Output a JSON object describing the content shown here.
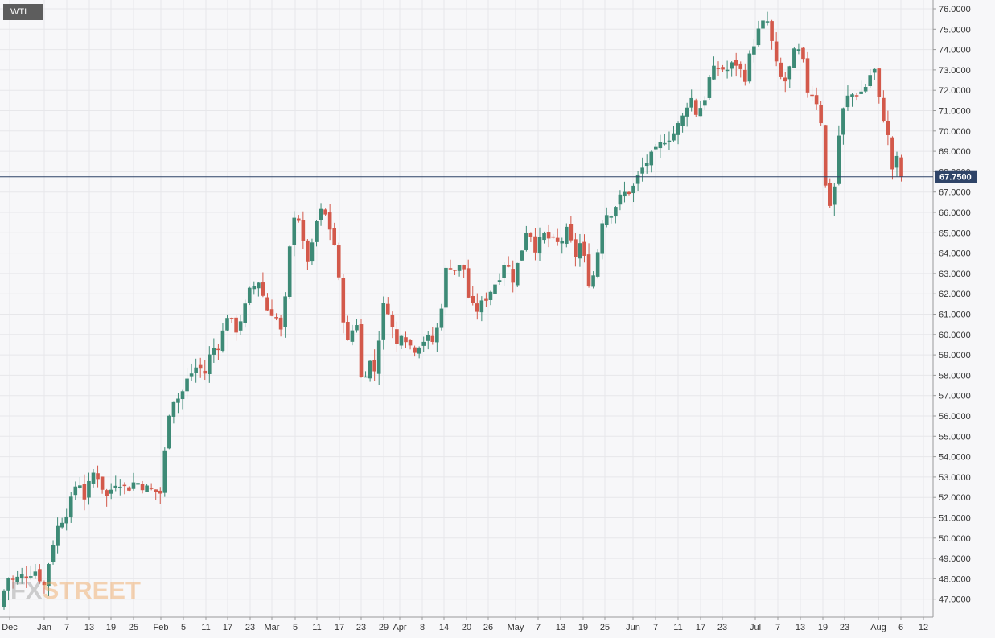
{
  "symbol": "WTI",
  "watermark": {
    "prefix": "FX",
    "suffix": "STREET"
  },
  "colors": {
    "up": "#3d8a76",
    "down": "#d3594b",
    "price_line": "#2f4468",
    "grid": "#e7e7ea",
    "axis_text": "#333333"
  },
  "chart_data": {
    "type": "candlestick",
    "ylim": [
      46.0,
      76.4
    ],
    "y_ticks": [
      "47.0000",
      "48.0000",
      "49.0000",
      "50.0000",
      "51.0000",
      "52.0000",
      "53.0000",
      "54.0000",
      "55.0000",
      "56.0000",
      "57.0000",
      "58.0000",
      "59.0000",
      "60.0000",
      "61.0000",
      "62.0000",
      "63.0000",
      "64.0000",
      "65.0000",
      "66.0000",
      "67.0000",
      "68.0000",
      "69.0000",
      "70.0000",
      "71.0000",
      "72.0000",
      "73.0000",
      "74.0000",
      "75.0000",
      "76.0000"
    ],
    "x_ticks": [
      "Dec",
      "Jan",
      "7",
      "13",
      "19",
      "25",
      "Feb",
      "5",
      "11",
      "17",
      "23",
      "Mar",
      "5",
      "11",
      "17",
      "23",
      "29",
      "Apr",
      "8",
      "14",
      "20",
      "26",
      "May",
      "7",
      "13",
      "19",
      "25",
      "Jun",
      "7",
      "11",
      "17",
      "23",
      "Jul",
      "7",
      "13",
      "19",
      "23",
      "Aug",
      "6",
      "12"
    ],
    "last_price": 67.75,
    "last_price_label": "67.7500",
    "anchors": [
      [
        0,
        46.6
      ],
      [
        9,
        48.1
      ],
      [
        16,
        47.9
      ],
      [
        30,
        48.2
      ],
      [
        44,
        48.4
      ],
      [
        56,
        47.6
      ],
      [
        62,
        49.2
      ],
      [
        72,
        50.6
      ],
      [
        86,
        51.5
      ],
      [
        97,
        53.0
      ],
      [
        105,
        52.0
      ],
      [
        118,
        53.4
      ],
      [
        132,
        52.0
      ],
      [
        146,
        52.9
      ],
      [
        158,
        52.4
      ],
      [
        168,
        52.8
      ],
      [
        184,
        52.4
      ],
      [
        200,
        52.2
      ],
      [
        206,
        54.7
      ],
      [
        212,
        56.8
      ],
      [
        224,
        56.9
      ],
      [
        234,
        57.9
      ],
      [
        246,
        58.5
      ],
      [
        254,
        58.0
      ],
      [
        262,
        59.2
      ],
      [
        274,
        59.6
      ],
      [
        282,
        61.0
      ],
      [
        293,
        60.2
      ],
      [
        302,
        61.0
      ],
      [
        311,
        62.2
      ],
      [
        323,
        62.7
      ],
      [
        330,
        61.3
      ],
      [
        342,
        61.0
      ],
      [
        351,
        59.9
      ],
      [
        359,
        63.8
      ],
      [
        366,
        66.0
      ],
      [
        373,
        65.6
      ],
      [
        380,
        63.4
      ],
      [
        388,
        64.3
      ],
      [
        396,
        66.1
      ],
      [
        406,
        65.8
      ],
      [
        416,
        64.4
      ],
      [
        426,
        61.0
      ],
      [
        434,
        59.2
      ],
      [
        442,
        61.3
      ],
      [
        450,
        57.4
      ],
      [
        458,
        58.8
      ],
      [
        466,
        58.2
      ],
      [
        476,
        61.4
      ],
      [
        484,
        61.2
      ],
      [
        492,
        59.3
      ],
      [
        500,
        60.3
      ],
      [
        508,
        59.5
      ],
      [
        516,
        59.3
      ],
      [
        524,
        59.7
      ],
      [
        532,
        59.8
      ],
      [
        540,
        59.6
      ],
      [
        548,
        61.2
      ],
      [
        556,
        63.6
      ],
      [
        566,
        63.2
      ],
      [
        576,
        63.4
      ],
      [
        584,
        61.4
      ],
      [
        594,
        61.2
      ],
      [
        604,
        61.8
      ],
      [
        612,
        62.3
      ],
      [
        620,
        62.8
      ],
      [
        628,
        63.7
      ],
      [
        638,
        62.7
      ],
      [
        648,
        64.1
      ],
      [
        656,
        65.4
      ],
      [
        666,
        64.2
      ],
      [
        676,
        64.9
      ],
      [
        686,
        64.6
      ],
      [
        696,
        64.4
      ],
      [
        704,
        65.1
      ],
      [
        716,
        63.8
      ],
      [
        722,
        64.6
      ],
      [
        734,
        62.2
      ],
      [
        742,
        63.8
      ],
      [
        750,
        66.0
      ],
      [
        758,
        65.9
      ],
      [
        766,
        66.4
      ],
      [
        774,
        66.9
      ],
      [
        786,
        67.1
      ],
      [
        796,
        68.0
      ],
      [
        806,
        68.6
      ],
      [
        814,
        68.9
      ],
      [
        826,
        69.6
      ],
      [
        836,
        69.8
      ],
      [
        848,
        70.6
      ],
      [
        858,
        71.8
      ],
      [
        866,
        70.8
      ],
      [
        876,
        71.6
      ],
      [
        884,
        72.9
      ],
      [
        894,
        73.1
      ],
      [
        904,
        73.0
      ],
      [
        914,
        73.4
      ],
      [
        926,
        72.6
      ],
      [
        934,
        74.0
      ],
      [
        946,
        75.2
      ],
      [
        956,
        75.4
      ],
      [
        962,
        73.6
      ],
      [
        970,
        72.6
      ],
      [
        978,
        72.4
      ],
      [
        986,
        73.8
      ],
      [
        996,
        73.9
      ],
      [
        1004,
        72.0
      ],
      [
        1012,
        71.8
      ],
      [
        1020,
        70.9
      ],
      [
        1028,
        66.2
      ],
      [
        1036,
        66.7
      ],
      [
        1044,
        70.3
      ],
      [
        1052,
        71.6
      ],
      [
        1060,
        71.8
      ],
      [
        1070,
        71.9
      ],
      [
        1078,
        72.3
      ],
      [
        1086,
        73.3
      ],
      [
        1094,
        71.2
      ],
      [
        1102,
        70.2
      ],
      [
        1110,
        68.0
      ],
      [
        1116,
        68.7
      ],
      [
        1121,
        67.75
      ]
    ]
  }
}
